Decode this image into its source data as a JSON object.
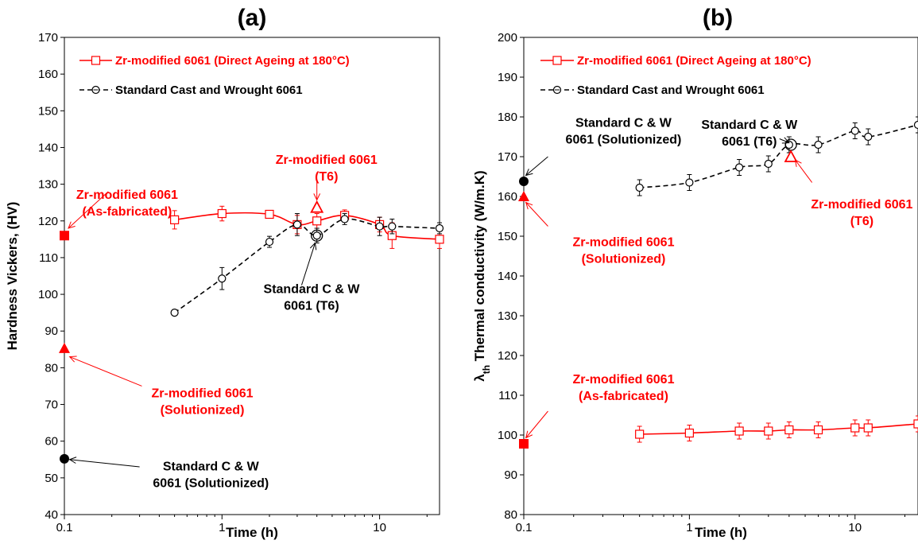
{
  "chart_data": [
    {
      "type": "line",
      "panel_label": "(a)",
      "title": "",
      "xlabel": "Time (h)",
      "ylabel": "Hardness Vickers, (HV)",
      "xscale": "log",
      "xlim": [
        0.1,
        24
      ],
      "ylim": [
        40,
        170
      ],
      "xticks": [
        0.1,
        1,
        10
      ],
      "xtick_labels": [
        "0.1",
        "1",
        "10"
      ],
      "yticks": [
        40,
        50,
        60,
        70,
        80,
        90,
        100,
        110,
        120,
        130,
        140,
        150,
        160,
        170
      ],
      "grid": false,
      "legend_position": "top-left",
      "series": [
        {
          "name": "Zr-modified 6061 (Direct Ageing at 180°C)",
          "color": "#ff0000",
          "line_style": "solid",
          "marker": "open-square",
          "x": [
            0.5,
            1,
            2,
            3,
            4,
            6,
            10,
            12,
            24
          ],
          "y": [
            120.3,
            122,
            121.8,
            119,
            120,
            121.5,
            119,
            116,
            115
          ],
          "err": [
            2.5,
            2,
            0,
            2.5,
            2,
            1.5,
            2,
            3.5,
            2.5
          ]
        },
        {
          "name": "Standard Cast and Wrought 6061",
          "color": "#000000",
          "line_style": "dashed",
          "marker": "open-circle",
          "x": [
            0.5,
            1,
            2,
            3,
            4,
            6,
            10,
            12,
            24
          ],
          "y": [
            95,
            104.3,
            114.3,
            119,
            116,
            120.5,
            118.5,
            118.5,
            118
          ],
          "err": [
            0,
            3,
            1.5,
            3,
            2,
            1.5,
            2.5,
            2,
            1.5
          ]
        }
      ],
      "markers": [
        {
          "x": 0.1,
          "y": 116,
          "shape": "filled-square",
          "color": "#ff0000"
        },
        {
          "x": 0.1,
          "y": 85.3,
          "shape": "filled-triangle",
          "color": "#ff0000"
        },
        {
          "x": 0.1,
          "y": 55.2,
          "shape": "filled-circle",
          "color": "#000000"
        },
        {
          "x": 4,
          "y": 123.7,
          "shape": "open-triangle",
          "color": "#ff0000"
        },
        {
          "x": 4,
          "y": 116,
          "shape": "big-open-circle",
          "color": "#000000"
        }
      ],
      "annotations": [
        {
          "lines": [
            "Zr-modified 6061",
            "(As-fabricated)"
          ],
          "color": "#ff0000",
          "x": 0.25,
          "y": 126
        },
        {
          "lines": [
            "Zr-modified 6061",
            "(Solutionized)"
          ],
          "color": "#ff0000",
          "x": 0.75,
          "y": 72
        },
        {
          "lines": [
            "Standard C & W",
            "6061 (Solutionized)"
          ],
          "color": "#000000",
          "x": 0.85,
          "y": 52
        },
        {
          "lines": [
            "Zr-modified 6061",
            "(T6)"
          ],
          "color": "#ff0000",
          "x": 4.6,
          "y": 135.5
        },
        {
          "lines": [
            "Standard C & W",
            "6061 (T6)"
          ],
          "color": "#000000",
          "x": 3.7,
          "y": 100.3
        }
      ],
      "arrows": [
        {
          "from": [
            0.19,
            128
          ],
          "to": [
            0.106,
            118
          ],
          "color": "#ff0000"
        },
        {
          "from": [
            0.31,
            75
          ],
          "to": [
            0.108,
            83
          ],
          "color": "#ff0000"
        },
        {
          "from": [
            0.3,
            53
          ],
          "to": [
            0.108,
            55
          ],
          "color": "#000000"
        },
        {
          "from": [
            4,
            131
          ],
          "to": [
            4,
            125.7
          ],
          "color": "#ff0000"
        },
        {
          "from": [
            3.2,
            102.5
          ],
          "to": [
            3.9,
            114
          ],
          "color": "#000000"
        }
      ]
    },
    {
      "type": "line",
      "panel_label": "(b)",
      "title": "",
      "xlabel": "Time (h)",
      "ylabel": "λth Thermal conductivity (W/m.K)",
      "ylabel_main": "λ",
      "ylabel_sub": "th",
      "ylabel_rest": " Thermal conductivity (W/m.K)",
      "xscale": "log",
      "xlim": [
        0.1,
        24
      ],
      "ylim": [
        80,
        200
      ],
      "xticks": [
        0.1,
        1,
        10
      ],
      "xtick_labels": [
        "0.1",
        "1",
        "10"
      ],
      "yticks": [
        80,
        90,
        100,
        110,
        120,
        130,
        140,
        150,
        160,
        170,
        180,
        190,
        200
      ],
      "grid": false,
      "legend_position": "top-left",
      "series": [
        {
          "name": "Zr-modified 6061 (Direct Ageing at 180°C)",
          "color": "#ff0000",
          "line_style": "solid",
          "marker": "open-square",
          "x": [
            0.5,
            1,
            2,
            3,
            4,
            6,
            10,
            12,
            24
          ],
          "y": [
            100.2,
            100.5,
            101,
            101,
            101.3,
            101.3,
            101.8,
            101.8,
            102.8
          ],
          "err": [
            2,
            2,
            2,
            2,
            2,
            2,
            2,
            2,
            2
          ]
        },
        {
          "name": "Standard Cast and Wrought 6061",
          "color": "#000000",
          "line_style": "dashed",
          "marker": "open-circle",
          "x": [
            0.5,
            1,
            2,
            3,
            4,
            6,
            10,
            12,
            24
          ],
          "y": [
            162.2,
            163.5,
            167.3,
            168.2,
            173,
            173,
            176.5,
            175,
            178
          ],
          "err": [
            2,
            2,
            2,
            2,
            2,
            2,
            2,
            2,
            2
          ]
        }
      ],
      "markers": [
        {
          "x": 0.1,
          "y": 163.8,
          "shape": "filled-circle",
          "color": "#000000"
        },
        {
          "x": 0.1,
          "y": 160,
          "shape": "filled-triangle",
          "color": "#ff0000"
        },
        {
          "x": 0.1,
          "y": 97.8,
          "shape": "filled-square",
          "color": "#ff0000"
        },
        {
          "x": 4.1,
          "y": 173,
          "shape": "big-open-circle",
          "color": "#000000"
        },
        {
          "x": 4.1,
          "y": 170,
          "shape": "open-triangle",
          "color": "#ff0000"
        }
      ],
      "annotations": [
        {
          "lines": [
            "Standard C & W",
            "6061 (Solutionized)"
          ],
          "color": "#000000",
          "x": 0.4,
          "y": 177.5
        },
        {
          "lines": [
            "Standard C & W",
            "6061 (T6)"
          ],
          "color": "#000000",
          "x": 2.3,
          "y": 177
        },
        {
          "lines": [
            "Zr-modified 6061",
            "(T6)"
          ],
          "color": "#ff0000",
          "x": 11,
          "y": 157
        },
        {
          "lines": [
            "Zr-modified 6061",
            "(Solutionized)"
          ],
          "color": "#ff0000",
          "x": 0.4,
          "y": 147.5
        },
        {
          "lines": [
            "Zr-modified 6061",
            "(As-fabricated)"
          ],
          "color": "#ff0000",
          "x": 0.4,
          "y": 113
        }
      ],
      "arrows": [
        {
          "from": [
            0.14,
            170
          ],
          "to": [
            0.103,
            165.3
          ],
          "color": "#000000"
        },
        {
          "from": [
            3.5,
            174.5
          ],
          "to": [
            4.0,
            173.5
          ],
          "color": "#000000"
        },
        {
          "from": [
            5.5,
            163.5
          ],
          "to": [
            4.35,
            169.2
          ],
          "color": "#ff0000"
        },
        {
          "from": [
            0.14,
            152.5
          ],
          "to": [
            0.103,
            158.5
          ],
          "color": "#ff0000"
        },
        {
          "from": [
            0.14,
            106
          ],
          "to": [
            0.103,
            99.3
          ],
          "color": "#ff0000"
        }
      ]
    }
  ]
}
